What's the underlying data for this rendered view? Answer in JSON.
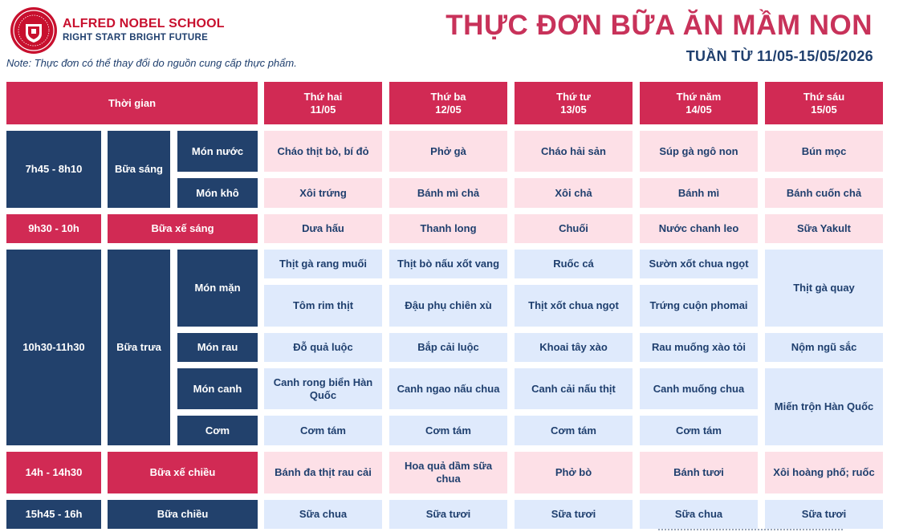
{
  "header": {
    "school_name": "ALFRED NOBEL SCHOOL",
    "slogan": "RIGHT START  BRIGHT FUTURE",
    "note": "Note: Thực đơn có thể thay đổi do nguồn cung cấp thực phẩm.",
    "title": "THỰC ĐƠN BỮA ĂN MẦM NON",
    "week": "TUẦN TỪ 11/05-15/05/2026"
  },
  "colors": {
    "pink": "#d12a54",
    "navy": "#22416c",
    "light_pink": "#fde0e7",
    "light_blue": "#dfeafc"
  },
  "table": {
    "time_header": "Thời gian",
    "days": [
      {
        "name": "Thứ hai",
        "date": "11/05"
      },
      {
        "name": "Thứ ba",
        "date": "12/05"
      },
      {
        "name": "Thứ tư",
        "date": "13/05"
      },
      {
        "name": "Thứ năm",
        "date": "14/05"
      },
      {
        "name": "Thứ sáu",
        "date": "15/05"
      }
    ],
    "times": {
      "breakfast": "7h45 - 8h10",
      "morning_snack": "9h30 - 10h",
      "lunch": "10h30-11h30",
      "afternoon_snack": "14h - 14h30",
      "afternoon": "15h45 - 16h"
    },
    "meals": {
      "breakfast": "Bữa sáng",
      "morning_snack": "Bữa xế sáng",
      "lunch": "Bữa trưa",
      "afternoon_snack": "Bữa xế chiều",
      "afternoon": "Bữa chiều"
    },
    "dish_types": {
      "soup_breakfast": "Món nước",
      "dry": "Món khô",
      "savory": "Món mặn",
      "vegetable": "Món rau",
      "soup": "Món canh",
      "rice": "Cơm"
    },
    "rows": {
      "mon_nuoc": [
        "Cháo thịt bò, bí đỏ",
        "Phở gà",
        "Cháo hải sản",
        "Súp gà ngô non",
        "Bún mọc"
      ],
      "mon_kho": [
        "Xôi trứng",
        "Bánh mì chả",
        "Xôi chả",
        "Bánh mì",
        "Bánh cuốn chả"
      ],
      "xe_sang": [
        "Dưa hấu",
        "Thanh long",
        "Chuối",
        "Nước chanh leo",
        "Sữa Yakult"
      ],
      "mon_man_1": [
        "Thịt gà rang muối",
        "Thịt bò nấu xốt vang",
        "Ruốc cá",
        "Sườn xốt chua ngọt"
      ],
      "mon_man_2": [
        "Tôm rim thịt",
        "Đậu phụ chiên xù",
        "Thịt xốt chua ngọt",
        "Trứng cuộn phomai"
      ],
      "mon_man_fri": "Thịt gà quay",
      "mon_rau": [
        "Đỗ quả luộc",
        "Bắp cải luộc",
        "Khoai tây xào",
        "Rau muống xào tỏi",
        "Nộm ngũ sắc"
      ],
      "mon_canh": [
        "Canh rong biển Hàn Quốc",
        "Canh ngao nấu chua",
        "Canh cải nấu thịt",
        "Canh muống chua"
      ],
      "com": [
        "Cơm tám",
        "Cơm tám",
        "Cơm tám",
        "Cơm tám"
      ],
      "canh_com_fri": "Miến trộn Hàn Quốc",
      "xe_chieu": [
        "Bánh đa thịt rau cải",
        "Hoa quả dầm sữa chua",
        "Phở bò",
        "Bánh tươi",
        "Xôi hoàng phố; ruốc"
      ],
      "chieu": [
        "Sữa chua",
        "Sữa tươi",
        "Sữa tươi",
        "Sữa chua",
        "Sữa tươi"
      ]
    }
  }
}
